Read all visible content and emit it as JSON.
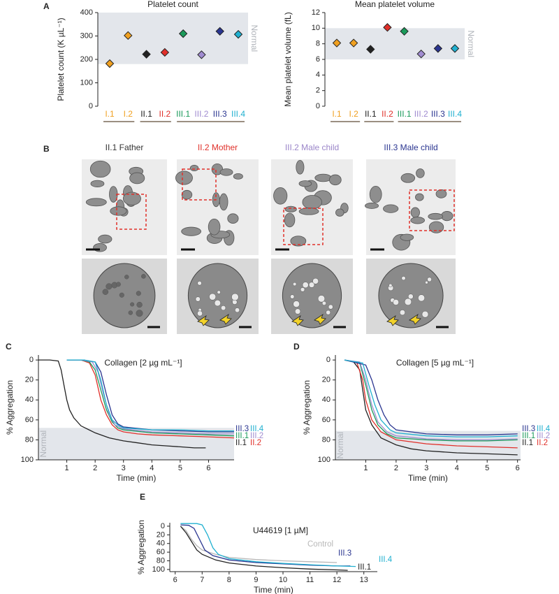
{
  "chart_data": [
    {
      "type": "scatter",
      "panel": "A",
      "title": "Platelet count",
      "y_label": "Platelet count (K µL⁻¹)",
      "categories": [
        "I.1",
        "I.2",
        "II.1",
        "II.2",
        "III.1",
        "III.2",
        "III.3",
        "III.4"
      ],
      "colors": [
        "#f0a020",
        "#f0a020",
        "#222222",
        "#e0302a",
        "#1a9a5a",
        "#a08cd0",
        "#2a3590",
        "#20b0d0"
      ],
      "values": [
        182,
        302,
        222,
        230,
        310,
        220,
        320,
        307
      ],
      "ylim": [
        0,
        400
      ],
      "yticks": [
        0,
        100,
        200,
        300,
        400
      ],
      "band": [
        180,
        400
      ],
      "band_label": "Normal",
      "band_color": "#e3e6eb"
    },
    {
      "type": "scatter",
      "title": "Mean platelet volume",
      "y_label": "Mean platelet volume (fL)",
      "categories": [
        "I.1",
        "I.2",
        "II.1",
        "II.2",
        "III.1",
        "III.2",
        "III.3",
        "III.4"
      ],
      "colors": [
        "#f0a020",
        "#f0a020",
        "#222222",
        "#e0302a",
        "#1a9a5a",
        "#a08cd0",
        "#2a3590",
        "#20b0d0"
      ],
      "values": [
        8.1,
        8.1,
        7.3,
        10.1,
        9.6,
        6.7,
        7.4,
        7.4
      ],
      "ylim": [
        0,
        12
      ],
      "yticks": [
        0,
        2,
        4,
        6,
        8,
        10,
        12
      ],
      "band": [
        6,
        10
      ],
      "band_label": "Normal",
      "band_color": "#e3e6eb"
    },
    {
      "type": "line",
      "panel": "C",
      "title": "Collagen [2 µg mL⁻¹]",
      "x_label": "Time (min)",
      "y_label": "% Aggregation",
      "xlim": [
        0,
        6.9
      ],
      "xticks": [
        1,
        2,
        3,
        4,
        5,
        6
      ],
      "ylim": [
        100,
        -5
      ],
      "yticks": [
        0,
        20,
        40,
        60,
        80,
        100
      ],
      "band": [
        68,
        100
      ],
      "band_label": "Normal",
      "band_color": "#e3e6eb",
      "series": [
        {
          "name": "II.1",
          "color": "#222222",
          "x": [
            0,
            0.4,
            0.7,
            0.8,
            0.9,
            1.0,
            1.1,
            1.25,
            1.5,
            2,
            2.5,
            3,
            3.5,
            4,
            4.5,
            5,
            5.5,
            5.9
          ],
          "values": [
            0,
            0,
            1,
            10,
            25,
            40,
            50,
            58,
            66,
            73,
            78,
            81,
            83,
            85,
            86,
            87,
            88,
            88
          ]
        },
        {
          "name": "II.2",
          "color": "#e0302a",
          "x": [
            1.0,
            1.5,
            1.8,
            2.0,
            2.2,
            2.4,
            2.6,
            2.8,
            3.0,
            3.5,
            4,
            5,
            6,
            6.9
          ],
          "values": [
            0,
            0,
            3,
            15,
            40,
            55,
            65,
            70,
            72,
            74,
            75,
            76,
            77,
            78
          ]
        },
        {
          "name": "III.1",
          "color": "#1a9a5a",
          "x": [
            1.0,
            1.5,
            1.8,
            2.0,
            2.2,
            2.4,
            2.6,
            2.8,
            3.0,
            4,
            5,
            6,
            6.9
          ],
          "values": [
            0,
            0,
            2,
            10,
            30,
            50,
            62,
            68,
            70,
            73,
            74,
            75,
            76
          ]
        },
        {
          "name": "III.2",
          "color": "#a08cd0",
          "x": [
            1.0,
            1.5,
            1.9,
            2.1,
            2.3,
            2.5,
            2.7,
            3.0,
            4,
            5,
            6,
            6.9
          ],
          "values": [
            0,
            0,
            2,
            12,
            35,
            55,
            65,
            69,
            72,
            73,
            74,
            74
          ]
        },
        {
          "name": "III.3",
          "color": "#2a3590",
          "x": [
            1.0,
            1.6,
            2.0,
            2.2,
            2.4,
            2.6,
            2.8,
            3.0,
            4,
            5,
            6,
            6.9
          ],
          "values": [
            0,
            0,
            2,
            12,
            35,
            55,
            64,
            67,
            70,
            71,
            72,
            72
          ]
        },
        {
          "name": "III.4",
          "color": "#20b0d0",
          "x": [
            1.0,
            1.6,
            2.0,
            2.2,
            2.4,
            2.6,
            2.8,
            3.0,
            4,
            5,
            6,
            6.9
          ],
          "values": [
            0,
            0,
            2,
            20,
            45,
            60,
            65,
            68,
            70,
            70,
            71,
            71
          ]
        }
      ]
    },
    {
      "type": "line",
      "panel": "D",
      "title": "Collagen [5 µg mL⁻¹]",
      "x_label": "Time (min)",
      "y_label": "% Aggregation",
      "xlim": [
        0,
        6.1
      ],
      "xticks": [
        1,
        2,
        3,
        4,
        5,
        6
      ],
      "ylim": [
        100,
        -5
      ],
      "yticks": [
        0,
        20,
        40,
        60,
        80,
        100
      ],
      "band": [
        71,
        100
      ],
      "band_label": "Normal",
      "band_color": "#e3e6eb",
      "series": [
        {
          "name": "II.1",
          "color": "#222222",
          "x": [
            0.3,
            0.6,
            0.8,
            0.9,
            1.0,
            1.2,
            1.5,
            2,
            2.5,
            3,
            4,
            5,
            6
          ],
          "values": [
            0,
            2,
            10,
            30,
            50,
            65,
            78,
            85,
            89,
            91,
            93,
            94,
            95
          ]
        },
        {
          "name": "II.2",
          "color": "#e0302a",
          "x": [
            0.3,
            0.7,
            0.9,
            1.0,
            1.2,
            1.5,
            2,
            3,
            4,
            5,
            6
          ],
          "values": [
            0,
            2,
            20,
            40,
            60,
            72,
            80,
            84,
            86,
            87,
            88
          ]
        },
        {
          "name": "III.1",
          "color": "#1a9a5a",
          "x": [
            0.3,
            0.8,
            1.0,
            1.2,
            1.4,
            1.7,
            2,
            3,
            4,
            5,
            6
          ],
          "values": [
            0,
            3,
            25,
            50,
            65,
            74,
            78,
            80,
            81,
            81,
            80
          ]
        },
        {
          "name": "III.2",
          "color": "#a08cd0",
          "x": [
            0.3,
            0.8,
            1.0,
            1.2,
            1.4,
            1.7,
            2,
            3,
            4,
            5,
            6
          ],
          "values": [
            0,
            2,
            20,
            45,
            62,
            72,
            76,
            79,
            80,
            80,
            79
          ]
        },
        {
          "name": "III.3",
          "color": "#2a3590",
          "x": [
            0.3,
            1.0,
            1.2,
            1.4,
            1.6,
            1.8,
            2,
            3,
            4,
            5,
            6
          ],
          "values": [
            0,
            5,
            20,
            40,
            55,
            65,
            70,
            74,
            75,
            75,
            74
          ]
        },
        {
          "name": "III.4",
          "color": "#20b0d0",
          "x": [
            0.3,
            0.9,
            1.1,
            1.3,
            1.5,
            1.8,
            2,
            3,
            4,
            5,
            6
          ],
          "values": [
            0,
            3,
            25,
            45,
            60,
            70,
            73,
            76,
            77,
            77,
            76
          ]
        }
      ]
    },
    {
      "type": "line",
      "panel": "E",
      "title": "U44619 [1 µM]",
      "x_label": "Time (min)",
      "y_label": "% Aggregation",
      "xlim": [
        5.8,
        13.5
      ],
      "xticks": [
        6,
        7,
        8,
        9,
        10,
        11,
        12,
        13
      ],
      "ylim": [
        105,
        -8
      ],
      "yticks": [
        0,
        20,
        40,
        60,
        80,
        100
      ],
      "series": [
        {
          "name": "Control",
          "color": "#b8b8b8",
          "x": [
            6.2,
            6.4,
            6.6,
            6.8,
            7,
            7.5,
            8,
            9,
            10,
            11,
            12
          ],
          "values": [
            0,
            10,
            30,
            45,
            55,
            65,
            72,
            77,
            80,
            82,
            84
          ]
        },
        {
          "name": "III.3",
          "color": "#2a3590",
          "x": [
            6.2,
            6.5,
            6.7,
            6.9,
            7.1,
            7.4,
            8,
            9,
            10,
            11,
            12,
            12.5
          ],
          "values": [
            -3,
            -2,
            5,
            30,
            55,
            68,
            78,
            84,
            87,
            90,
            92,
            92
          ]
        },
        {
          "name": "III.4",
          "color": "#20b0d0",
          "x": [
            6.2,
            6.8,
            7.0,
            7.2,
            7.4,
            7.6,
            8,
            9,
            10,
            11,
            12,
            12.7
          ],
          "values": [
            -6,
            -6,
            -3,
            20,
            50,
            65,
            75,
            82,
            86,
            89,
            92,
            93
          ]
        },
        {
          "name": "III.1",
          "color": "#222222",
          "x": [
            6.2,
            6.4,
            6.6,
            6.8,
            7,
            7.5,
            8,
            9,
            10,
            11,
            12,
            12.4
          ],
          "values": [
            0,
            15,
            35,
            55,
            65,
            78,
            85,
            92,
            96,
            99,
            101,
            102
          ]
        }
      ]
    }
  ],
  "panel_b": {
    "label": "B",
    "images": [
      {
        "title": "II.1 Father",
        "color": "#333333"
      },
      {
        "title": "II.2 Mother",
        "color": "#e0302a"
      },
      {
        "title": "III.2 Male child",
        "color": "#9b86c9"
      },
      {
        "title": "III.3 Male child",
        "color": "#2a3590"
      }
    ]
  }
}
